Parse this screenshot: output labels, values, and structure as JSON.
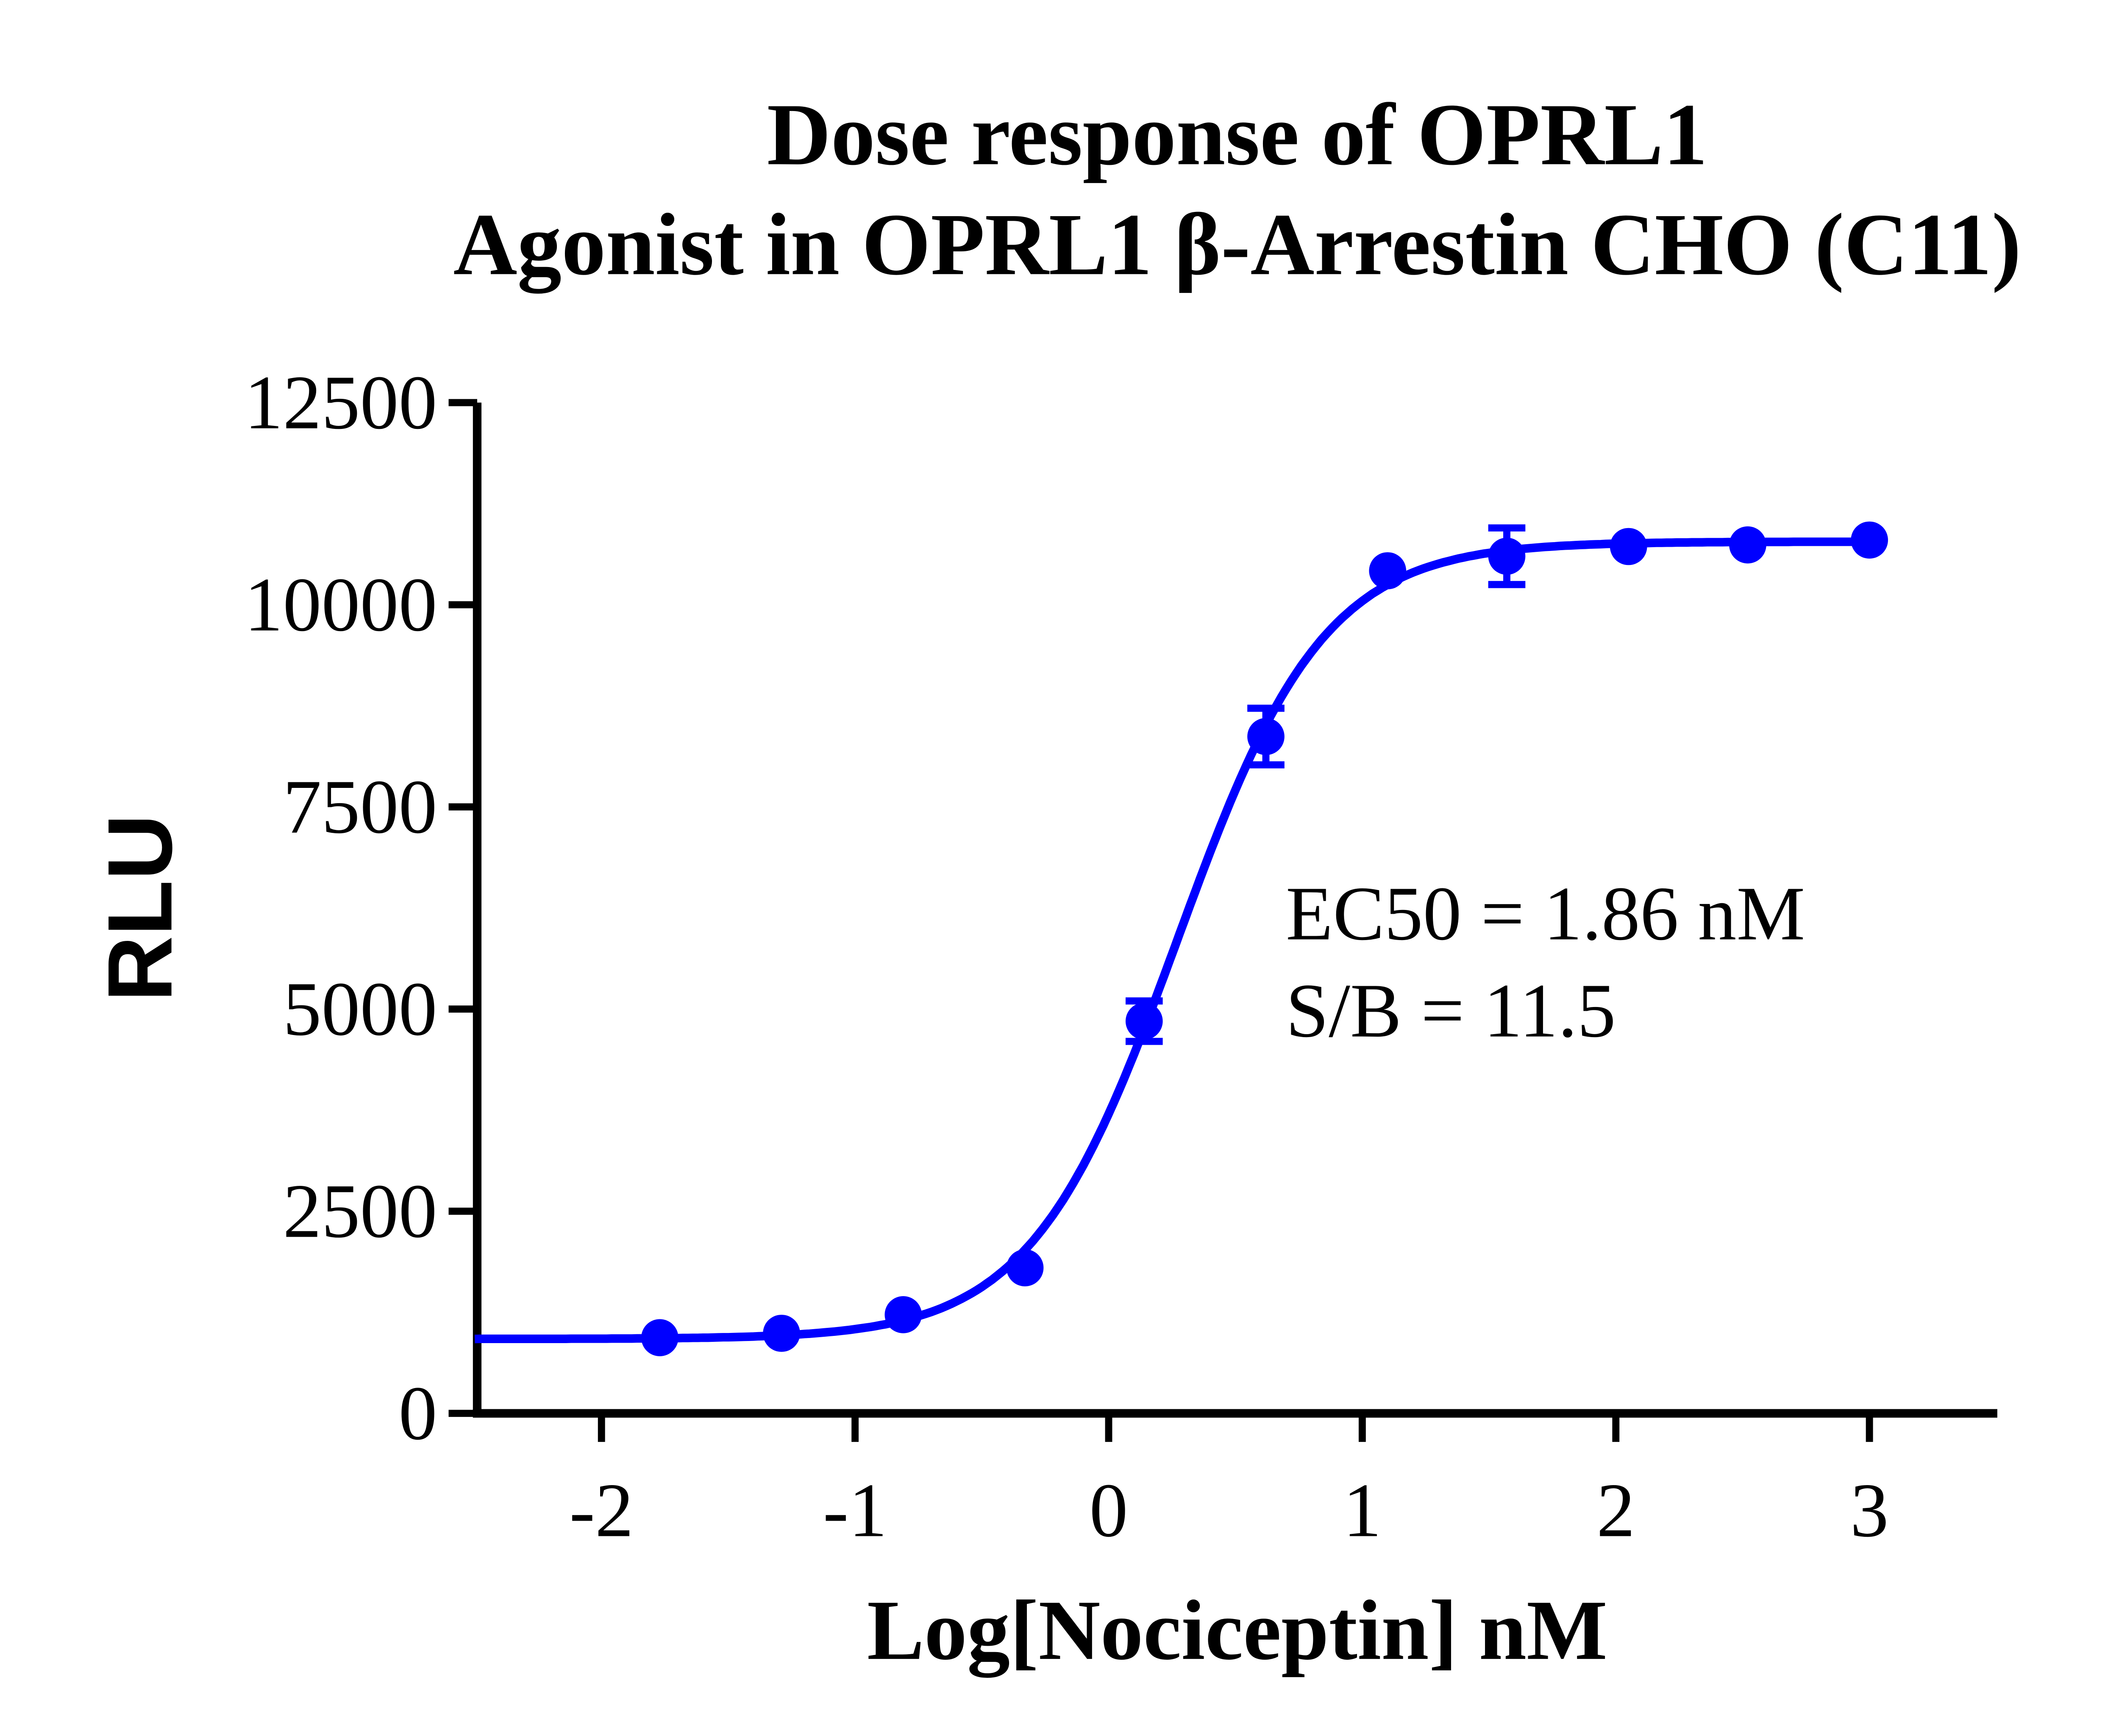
{
  "chart_data": {
    "type": "scatter",
    "title": [
      "Dose response of OPRL1",
      "Agonist in OPRL1 β-Arrestin CHO (C11)"
    ],
    "xlabel": "Log[Nociceptin] nM",
    "ylabel": "RLU",
    "xlim": [
      -2.5,
      3.5
    ],
    "ylim": [
      0,
      12500
    ],
    "x_ticks": [
      -2,
      -1,
      0,
      1,
      2,
      3
    ],
    "x_tick_labels": [
      "-2",
      "-1",
      "0",
      "1",
      "2",
      "3"
    ],
    "y_ticks": [
      0,
      2500,
      5000,
      7500,
      10000,
      12500
    ],
    "y_tick_labels": [
      "0",
      "2500",
      "5000",
      "7500",
      "10000",
      "12500"
    ],
    "grid": false,
    "color": "#0000ff",
    "series": [
      {
        "x": [
          -1.77,
          -1.29,
          -0.81,
          -0.33,
          0.14,
          0.62,
          1.1,
          1.57,
          2.05,
          2.52,
          3.0
        ],
        "y": [
          936,
          990,
          1220,
          1800,
          4850,
          8370,
          10420,
          10600,
          10720,
          10740,
          10800
        ],
        "error": [
          60,
          60,
          80,
          100,
          250,
          350,
          100,
          350,
          80,
          60,
          60
        ]
      }
    ],
    "fit": {
      "model": "4PL",
      "bottom": 920,
      "top": 10780,
      "log_ec50": 0.27,
      "hill": 1.5
    },
    "annotations": [
      "EC50 = 1.86 nM",
      "S/B = 11.5"
    ]
  }
}
